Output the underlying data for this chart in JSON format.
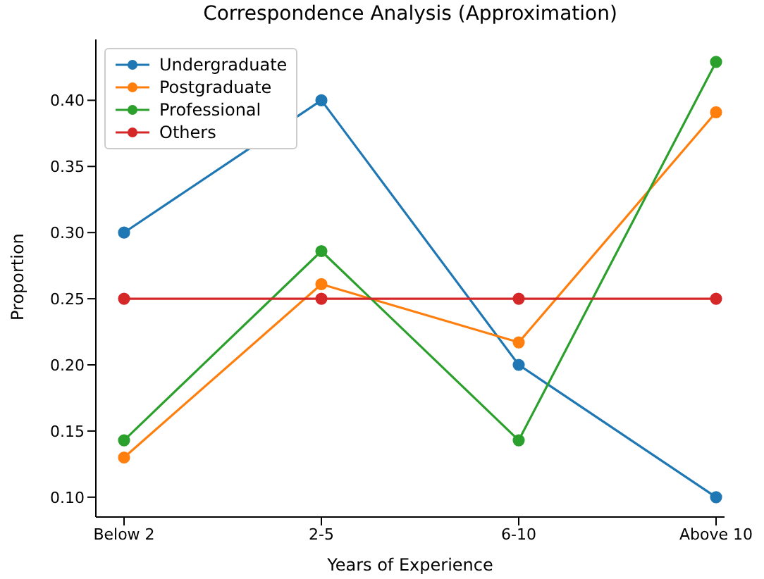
{
  "chart_data": {
    "type": "line",
    "title": "Correspondence Analysis (Approximation)",
    "xlabel": "Years of Experience",
    "ylabel": "Proportion",
    "categories": [
      "Below 2",
      "2-5",
      "6-10",
      "Above 10"
    ],
    "series": [
      {
        "name": "Undergraduate",
        "color": "#1f77b4",
        "values": [
          0.3,
          0.4,
          0.2,
          0.1
        ]
      },
      {
        "name": "Postgraduate",
        "color": "#ff7f0e",
        "values": [
          0.13,
          0.261,
          0.217,
          0.391
        ]
      },
      {
        "name": "Professional",
        "color": "#2ca02c",
        "values": [
          0.143,
          0.286,
          0.143,
          0.429
        ]
      },
      {
        "name": "Others",
        "color": "#d62728",
        "values": [
          0.25,
          0.25,
          0.25,
          0.25
        ]
      }
    ],
    "ylim": [
      0.085,
      0.446
    ],
    "yticks": [
      {
        "value": 0.1,
        "label": "0.10"
      },
      0.15,
      {
        "value": 0.2,
        "label": "0.20"
      },
      0.25,
      {
        "value": 0.3,
        "label": "0.30"
      },
      0.35,
      {
        "value": 0.4,
        "label": "0.40"
      }
    ],
    "grid": false,
    "legend": "top left",
    "marker": "circle",
    "line_style": "solid"
  }
}
